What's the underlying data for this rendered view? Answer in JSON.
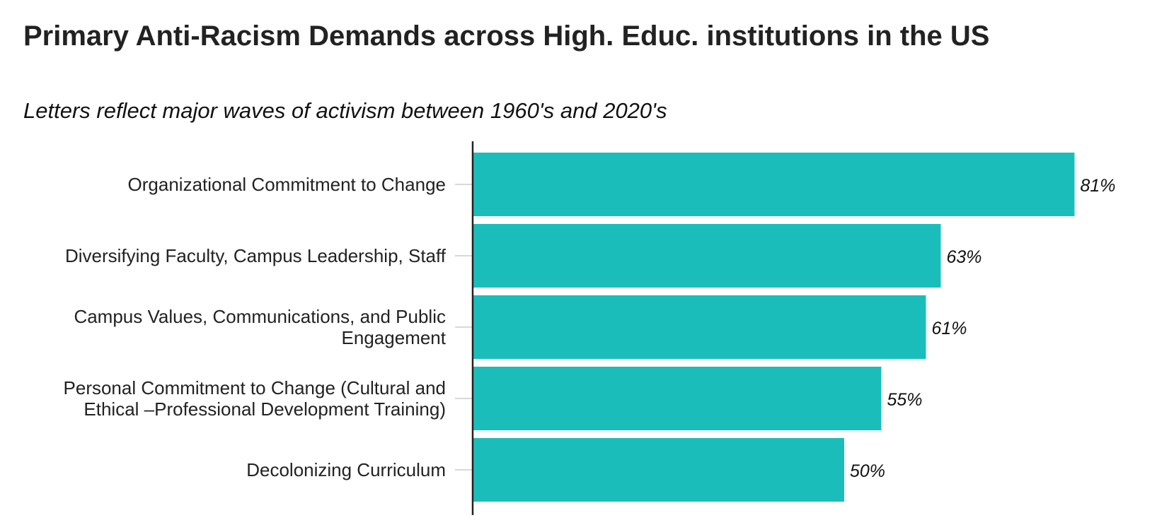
{
  "chart_data": {
    "type": "bar",
    "orientation": "horizontal",
    "title": "Primary Anti-Racism Demands across High. Educ. institutions in the US",
    "subtitle": "Letters reflect major waves of activism between 1960's and 2020's",
    "categories": [
      "Organizational Commitment to Change",
      "Diversifying Faculty, Campus Leadership, Staff",
      "Campus Values, Communications, and Public Engagement",
      "Personal Commitment to Change (Cultural and Ethical –Professional Development Training)",
      "Decolonizing Curriculum"
    ],
    "category_label_lines": [
      [
        "Organizational Commitment to Change"
      ],
      [
        "Diversifying Faculty, Campus Leadership, Staff"
      ],
      [
        "Campus Values, Communications, and Public",
        "Engagement"
      ],
      [
        "Personal Commitment to Change (Cultural and",
        "Ethical –Professional Development Training)"
      ],
      [
        "Decolonizing Curriculum"
      ]
    ],
    "values": [
      81,
      63,
      61,
      55,
      50
    ],
    "value_labels": [
      "81%",
      "63%",
      "61%",
      "55%",
      "50%"
    ],
    "unit": "%",
    "xlim": [
      0,
      81
    ],
    "grid": false,
    "legend": "none",
    "colors": {
      "bar": "#1bbdba",
      "axis": "#222222",
      "tick": "#cccccc",
      "text": "#222222"
    }
  }
}
